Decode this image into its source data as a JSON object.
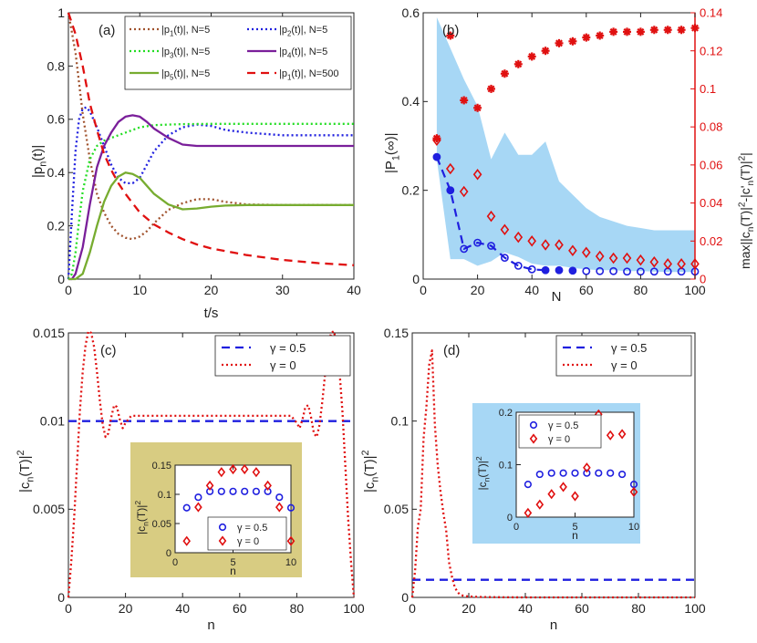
{
  "chart_data": [
    {
      "id": "a",
      "panel_label": "(a)",
      "type": "line",
      "xlabel": "t/s",
      "ylabel": "|p_n(t)|",
      "xlim": [
        0,
        40
      ],
      "ylim": [
        0,
        1
      ],
      "xticks": [
        "0",
        "10",
        "20",
        "30",
        "40"
      ],
      "yticks": [
        "0",
        "0.2",
        "0.4",
        "0.6",
        "0.8",
        "1"
      ],
      "legend": {
        "placement": "top-right",
        "columns": 2,
        "entries": [
          "|p_1(t)|, N=5",
          "|p_2(t)|, N=5",
          "|p_3(t)|, N=5",
          "|p_4(t)|, N=5",
          "|p_5(t)|, N=5",
          "|p_1(t)|, N=500"
        ]
      },
      "series": [
        {
          "name": "|p_1(t)|, N=5",
          "color": "#a0522d",
          "dash": "dotted",
          "x": [
            0,
            1,
            2,
            3,
            4,
            5,
            6,
            7,
            8,
            9,
            10,
            11,
            12,
            14,
            16,
            18,
            20,
            22,
            25,
            30,
            35,
            40
          ],
          "y": [
            1.0,
            0.85,
            0.62,
            0.45,
            0.32,
            0.25,
            0.2,
            0.17,
            0.155,
            0.15,
            0.16,
            0.18,
            0.21,
            0.26,
            0.285,
            0.3,
            0.3,
            0.29,
            0.28,
            0.278,
            0.278,
            0.278
          ]
        },
        {
          "name": "|p_2(t)|, N=5",
          "color": "#1f1fdf",
          "dash": "dotted",
          "x": [
            0,
            0.5,
            1,
            1.5,
            2,
            2.5,
            3,
            4,
            5,
            6,
            7,
            8,
            9,
            10,
            11,
            12,
            14,
            16,
            18,
            20,
            22,
            25,
            30,
            35,
            40
          ],
          "y": [
            0,
            0.25,
            0.48,
            0.6,
            0.64,
            0.645,
            0.63,
            0.57,
            0.5,
            0.43,
            0.38,
            0.36,
            0.36,
            0.38,
            0.43,
            0.48,
            0.54,
            0.57,
            0.58,
            0.575,
            0.56,
            0.55,
            0.54,
            0.54,
            0.54
          ]
        },
        {
          "name": "|p_3(t)|, N=5",
          "color": "#22dd22",
          "dash": "dotted",
          "x": [
            0,
            0.5,
            1,
            1.5,
            2,
            3,
            4,
            5,
            6,
            7,
            8,
            9,
            10,
            12,
            14,
            16,
            20,
            25,
            30,
            35,
            40
          ],
          "y": [
            0,
            0.02,
            0.1,
            0.22,
            0.33,
            0.45,
            0.5,
            0.52,
            0.53,
            0.54,
            0.55,
            0.56,
            0.57,
            0.578,
            0.58,
            0.582,
            0.583,
            0.583,
            0.583,
            0.583,
            0.583
          ]
        },
        {
          "name": "|p_4(t)|, N=5",
          "color": "#7a1f9a",
          "dash": "solid",
          "x": [
            0,
            0.5,
            1,
            2,
            3,
            4,
            5,
            6,
            7,
            8,
            9,
            10,
            11,
            12,
            14,
            16,
            18,
            20,
            22,
            25,
            30,
            35,
            40
          ],
          "y": [
            0,
            0.0,
            0.02,
            0.12,
            0.28,
            0.42,
            0.5,
            0.55,
            0.59,
            0.61,
            0.615,
            0.61,
            0.59,
            0.565,
            0.53,
            0.505,
            0.5,
            0.5,
            0.5,
            0.5,
            0.5,
            0.5,
            0.5
          ]
        },
        {
          "name": "|p_5(t)|, N=5",
          "color": "#77ac30",
          "dash": "solid",
          "x": [
            0,
            1,
            2,
            3,
            4,
            5,
            6,
            7,
            8,
            9,
            10,
            11,
            12,
            14,
            16,
            18,
            20,
            22,
            25,
            30,
            35,
            40
          ],
          "y": [
            0,
            0.0,
            0.02,
            0.1,
            0.2,
            0.29,
            0.35,
            0.385,
            0.4,
            0.395,
            0.38,
            0.35,
            0.32,
            0.28,
            0.262,
            0.265,
            0.272,
            0.276,
            0.278,
            0.278,
            0.278,
            0.278
          ]
        },
        {
          "name": "|p_1(t)|, N=500",
          "color": "#e01010",
          "dash": "dashed",
          "x": [
            0,
            1,
            2,
            3,
            4,
            5,
            6,
            7,
            8,
            9,
            10,
            12,
            14,
            16,
            18,
            20,
            25,
            30,
            35,
            40
          ],
          "y": [
            1.0,
            0.92,
            0.8,
            0.66,
            0.56,
            0.47,
            0.41,
            0.36,
            0.32,
            0.285,
            0.25,
            0.205,
            0.175,
            0.15,
            0.13,
            0.115,
            0.09,
            0.072,
            0.06,
            0.052
          ]
        }
      ]
    },
    {
      "id": "b",
      "panel_label": "(b)",
      "type": "scatter",
      "xlabel": "N",
      "ylabel_left": "|P_1(∞)|",
      "ylabel_right": "max||c_n(T)|^2-|c'_n(T)|^2|",
      "xlim": [
        0,
        100
      ],
      "ylim_left": [
        0,
        0.6
      ],
      "ylim_right": [
        0,
        0.14
      ],
      "xticks": [
        "0",
        "20",
        "40",
        "60",
        "80",
        "100"
      ],
      "yticks_left": [
        "0",
        "0.2",
        "0.4",
        "0.6"
      ],
      "yticks_right": [
        "0",
        "0.02",
        "0.04",
        "0.06",
        "0.08",
        "0.1",
        "0.12",
        "0.14"
      ],
      "band": {
        "name": "spread of |P_1(∞)|",
        "color": "#a7d7f5",
        "x": [
          5,
          10,
          15,
          20,
          25,
          30,
          35,
          40,
          45,
          50,
          55,
          60,
          65,
          70,
          75,
          80,
          85,
          90,
          95,
          100
        ],
        "lower": [
          0.27,
          0.045,
          0.045,
          0.03,
          0.04,
          0.06,
          0.05,
          0.035,
          0.03,
          0.03,
          0.025,
          0.022,
          0.02,
          0.02,
          0.018,
          0.018,
          0.017,
          0.016,
          0.016,
          0.016
        ],
        "upper": [
          0.59,
          0.52,
          0.45,
          0.39,
          0.27,
          0.33,
          0.28,
          0.28,
          0.31,
          0.22,
          0.19,
          0.16,
          0.14,
          0.13,
          0.12,
          0.115,
          0.11,
          0.11,
          0.11,
          0.11
        ]
      },
      "series": [
        {
          "name": "|P_1(∞)|",
          "axis": "left",
          "color": "#1f1fdf",
          "marker": "circle-open",
          "line": "dashed",
          "x": [
            5,
            10,
            15,
            20,
            25,
            30,
            35,
            40,
            45,
            50,
            55,
            60,
            65,
            70,
            75,
            80,
            85,
            90,
            95,
            100
          ],
          "y": [
            0.275,
            0.2,
            0.068,
            0.082,
            0.075,
            0.048,
            0.03,
            0.022,
            0.02,
            0.02,
            0.019,
            0.018,
            0.018,
            0.018,
            0.017,
            0.017,
            0.017,
            0.017,
            0.017,
            0.017
          ],
          "filled": [
            true,
            true,
            false,
            false,
            false,
            false,
            false,
            false,
            true,
            true,
            true,
            false,
            false,
            false,
            false,
            false,
            false,
            false,
            false,
            false
          ]
        },
        {
          "name": "max||c_n(T)|^2-|c'_n(T)|^2| (γ = 0.5)",
          "axis": "right",
          "color": "#e01010",
          "marker": "asterisk",
          "x": [
            5,
            10,
            15,
            20,
            25,
            30,
            35,
            40,
            45,
            50,
            55,
            60,
            65,
            70,
            75,
            80,
            85,
            90,
            95,
            100
          ],
          "y": [
            0.074,
            0.128,
            0.094,
            0.09,
            0.1,
            0.108,
            0.113,
            0.117,
            0.12,
            0.124,
            0.125,
            0.127,
            0.128,
            0.13,
            0.13,
            0.13,
            0.131,
            0.131,
            0.131,
            0.132
          ]
        },
        {
          "name": "max||c_n(T)|^2-|c'_n(T)|^2| (γ = 0)",
          "axis": "right",
          "color": "#e01010",
          "marker": "diamond-open",
          "x": [
            5,
            10,
            15,
            20,
            25,
            30,
            35,
            40,
            45,
            50,
            55,
            60,
            65,
            70,
            75,
            80,
            85,
            90,
            95,
            100
          ],
          "y": [
            0.073,
            0.058,
            0.046,
            0.055,
            0.033,
            0.026,
            0.022,
            0.02,
            0.018,
            0.018,
            0.015,
            0.014,
            0.012,
            0.011,
            0.011,
            0.01,
            0.009,
            0.008,
            0.008,
            0.008
          ]
        }
      ]
    },
    {
      "id": "c",
      "panel_label": "(c)",
      "type": "line",
      "xlabel": "n",
      "ylabel": "|c_n(T)|^2",
      "xlim": [
        0,
        100
      ],
      "ylim": [
        0,
        0.015
      ],
      "xticks": [
        "0",
        "20",
        "40",
        "60",
        "80",
        "100"
      ],
      "yticks": [
        "0",
        "0.005",
        "0.01",
        "0.015"
      ],
      "legend": {
        "placement": "top-right",
        "entries": [
          "γ = 0.5",
          "γ = 0"
        ]
      },
      "series": [
        {
          "name": "γ = 0.5",
          "color": "#1f1fdf",
          "dash": "dashed",
          "x": [
            0,
            100
          ],
          "y": [
            0.01,
            0.01
          ]
        },
        {
          "name": "γ = 0",
          "color": "#e01010",
          "dash": "dotted",
          "x": [
            0,
            1,
            2,
            3,
            4,
            5,
            6,
            7,
            8,
            9,
            10,
            11,
            12,
            13,
            14,
            15,
            16,
            17,
            18,
            19,
            20,
            22,
            25,
            30,
            40,
            50,
            60,
            70,
            75,
            78,
            80,
            81,
            82,
            83,
            84,
            85,
            86,
            87,
            88,
            89,
            90,
            91,
            92,
            93,
            94,
            95,
            96,
            97,
            98,
            99,
            100
          ],
          "y": [
            0.0,
            0.002,
            0.0045,
            0.0075,
            0.0105,
            0.0128,
            0.0143,
            0.0151,
            0.015,
            0.0142,
            0.0128,
            0.0112,
            0.0098,
            0.0091,
            0.0093,
            0.0102,
            0.0109,
            0.0108,
            0.0101,
            0.0096,
            0.0099,
            0.0103,
            0.0103,
            0.0103,
            0.0103,
            0.0103,
            0.0103,
            0.0103,
            0.0103,
            0.0103,
            0.0099,
            0.0096,
            0.0101,
            0.0108,
            0.0109,
            0.0102,
            0.0093,
            0.0091,
            0.0098,
            0.0112,
            0.0128,
            0.0142,
            0.015,
            0.0151,
            0.0143,
            0.0128,
            0.0105,
            0.0075,
            0.0045,
            0.002,
            0.0
          ]
        }
      ],
      "inset": {
        "background": "#d8cc82",
        "xlabel": "n",
        "ylabel": "|c_n(T)|^2",
        "xlim": [
          0,
          10
        ],
        "ylim": [
          0,
          0.15
        ],
        "xticks": [
          "0",
          "5",
          "10"
        ],
        "yticks": [
          "0",
          "0.05",
          "0.1",
          "0.15"
        ],
        "legend": {
          "placement": "bottom-right",
          "entries": [
            "γ = 0.5",
            "γ = 0"
          ]
        },
        "series": [
          {
            "name": "γ = 0.5",
            "marker": "circle-open",
            "color": "#1f1fdf",
            "x": [
              1,
              2,
              3,
              4,
              5,
              6,
              7,
              8,
              9,
              10
            ],
            "y": [
              0.077,
              0.095,
              0.105,
              0.105,
              0.105,
              0.105,
              0.105,
              0.105,
              0.095,
              0.077
            ]
          },
          {
            "name": "γ = 0",
            "marker": "diamond-open",
            "color": "#e01010",
            "x": [
              1,
              2,
              3,
              4,
              5,
              6,
              7,
              8,
              9,
              10
            ],
            "y": [
              0.02,
              0.078,
              0.115,
              0.138,
              0.143,
              0.143,
              0.138,
              0.115,
              0.078,
              0.02
            ]
          }
        ]
      }
    },
    {
      "id": "d",
      "panel_label": "(d)",
      "type": "line",
      "xlabel": "n",
      "ylabel": "|c_n(T)|^2",
      "xlim": [
        0,
        100
      ],
      "ylim": [
        0,
        0.15
      ],
      "xticks": [
        "0",
        "20",
        "40",
        "60",
        "80",
        "100"
      ],
      "yticks": [
        "0",
        "0.05",
        "0.1",
        "0.15"
      ],
      "legend": {
        "placement": "top-right",
        "entries": [
          "γ = 0.5",
          "γ = 0"
        ]
      },
      "series": [
        {
          "name": "γ = 0.5",
          "color": "#1f1fdf",
          "dash": "dashed",
          "x": [
            0,
            100
          ],
          "y": [
            0.01,
            0.01
          ]
        },
        {
          "name": "γ = 0",
          "color": "#e01010",
          "dash": "dotted",
          "x": [
            0,
            1,
            2,
            3,
            4,
            5,
            6,
            7,
            8,
            9,
            10,
            11,
            12,
            13,
            14,
            15,
            16,
            17,
            18,
            20,
            25,
            30,
            40,
            60,
            80,
            100
          ],
          "y": [
            0.0,
            0.015,
            0.04,
            0.05,
            0.09,
            0.108,
            0.132,
            0.14,
            0.098,
            0.075,
            0.06,
            0.048,
            0.038,
            0.02,
            0.012,
            0.006,
            0.003,
            0.0015,
            0.001,
            0.0005,
            0.0002,
            0.0001,
            0.0,
            0.0,
            0.0,
            0.0
          ]
        }
      ],
      "inset": {
        "background": "#a7d7f5",
        "xlabel": "n",
        "ylabel": "|c_n(T)|^2",
        "xlim": [
          0,
          10
        ],
        "ylim": [
          0,
          0.25
        ],
        "xticks": [
          "0",
          "5",
          "10"
        ],
        "yticks": [
          "0",
          "0.1",
          "0.2"
        ],
        "legend": {
          "placement": "top-left",
          "entries": [
            "γ = 0.5",
            "γ = 0"
          ]
        },
        "series": [
          {
            "name": "γ = 0.5",
            "marker": "circle-open",
            "color": "#1f1fdf",
            "x": [
              1,
              2,
              3,
              4,
              5,
              6,
              7,
              8,
              9,
              10
            ],
            "y": [
              0.078,
              0.102,
              0.105,
              0.105,
              0.105,
              0.105,
              0.105,
              0.105,
              0.102,
              0.078
            ]
          },
          {
            "name": "γ = 0",
            "marker": "diamond-open",
            "color": "#e01010",
            "x": [
              1,
              2,
              3,
              4,
              5,
              6,
              7,
              8,
              9,
              10
            ],
            "y": [
              0.01,
              0.03,
              0.055,
              0.072,
              0.05,
              0.118,
              0.245,
              0.195,
              0.198,
              0.06
            ]
          }
        ]
      }
    }
  ]
}
